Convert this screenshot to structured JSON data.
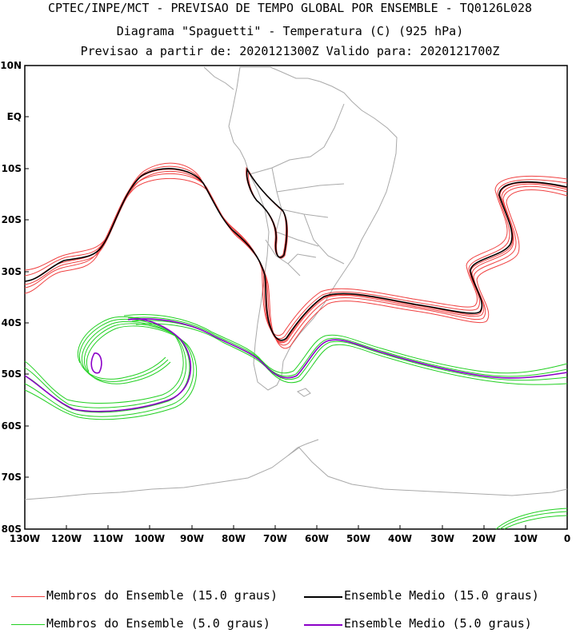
{
  "header": {
    "line1": "CPTEC/INPE/MCT - PREVISAO DE TEMPO GLOBAL POR ENSEMBLE - TQ0126L028",
    "line2": "Diagrama \"Spaguetti\" - Temperatura (C) (925 hPa)",
    "line3": "Previsao a partir de: 2020121300Z  Valido para: 2020121700Z"
  },
  "axes": {
    "lat_labels": [
      "10N",
      "EQ",
      "10S",
      "20S",
      "30S",
      "40S",
      "50S",
      "60S",
      "70S",
      "80S"
    ],
    "lon_labels": [
      "130W",
      "120W",
      "110W",
      "100W",
      "90W",
      "80W",
      "70W",
      "60W",
      "50W",
      "40W",
      "30W",
      "20W",
      "10W",
      "0"
    ]
  },
  "colors": {
    "member15": "#f04040",
    "mean15": "#000000",
    "member5": "#22d022",
    "mean5": "#8b00c8",
    "coast": "#a9a9a9"
  },
  "legend": {
    "member15": "Membros do Ensemble (15.0 graus)",
    "mean15": "Ensemble Medio (15.0 graus)",
    "member5": "Membros do Ensemble (5.0 graus)",
    "mean5": "Ensemble Medio (5.0 graus)"
  }
}
